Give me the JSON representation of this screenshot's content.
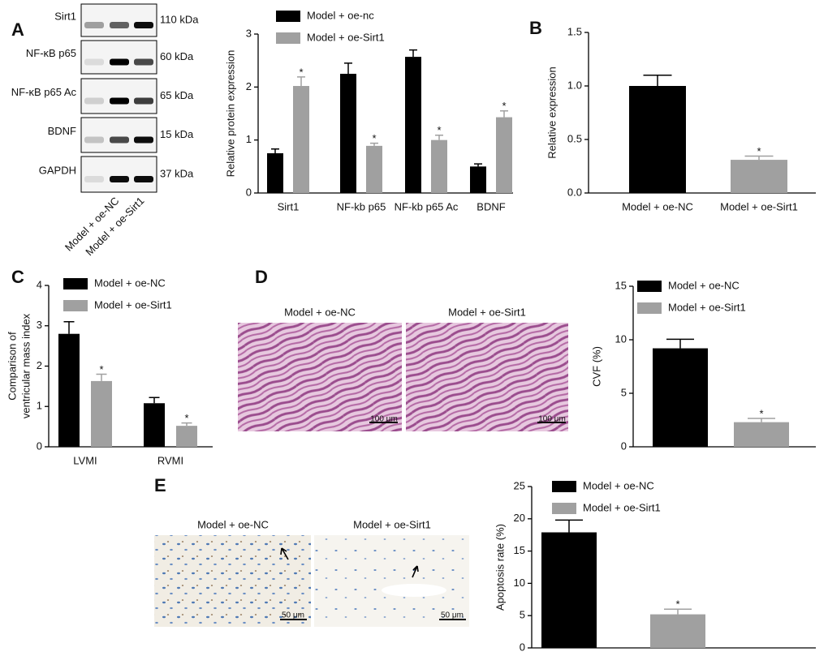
{
  "panel_labels": [
    "A",
    "B",
    "C",
    "D",
    "E"
  ],
  "blot": {
    "proteins": [
      "Sirt1",
      "NF-κB p65",
      "NF-κB p65 Ac",
      "BDNF",
      "GAPDH"
    ],
    "sizes": [
      "110 kDa",
      "60 kDa",
      "65 kDa",
      "15 kDa",
      "37 kDa"
    ],
    "lanes": [
      "Model + oe-NC",
      "Model + oe-Sirt1"
    ]
  },
  "micrographs_d": {
    "labels": [
      "Model + oe-NC",
      "Model + oe-Sirt1"
    ],
    "scale": "100 μm"
  },
  "micrographs_e": {
    "labels": [
      "Model + oe-NC",
      "Model + oe-Sirt1"
    ],
    "scale": "50 μm"
  },
  "chart_data": [
    {
      "type": "bar",
      "ylabel": [
        "Relative protein expression"
      ],
      "annotation": "*",
      "categories": [
        "Sirt1",
        "NF-kb p65",
        "NF-kb p65 Ac",
        "BDNF"
      ],
      "series": [
        {
          "name": "Model + oe-nc",
          "color": "#000000",
          "values": [
            0.75,
            2.25,
            2.57,
            0.5
          ],
          "errors": [
            0.08,
            0.2,
            0.13,
            0.05
          ]
        },
        {
          "name": "Model + oe-Sirt1",
          "color": "#a0a0a0",
          "values": [
            2.02,
            0.89,
            1.0,
            1.43
          ],
          "errors": [
            0.17,
            0.05,
            0.09,
            0.12
          ]
        }
      ],
      "ylim": [
        0,
        3
      ],
      "yticks": [
        0,
        1,
        2,
        3
      ]
    },
    {
      "type": "bar",
      "ylabel": [
        "Relative expression"
      ],
      "annotation": "*",
      "categories": [
        "Model + oe-NC",
        "Model + oe-Sirt1"
      ],
      "values": [
        1.0,
        0.31
      ],
      "errors": [
        0.1,
        0.035
      ],
      "colors": [
        "#000000",
        "#a0a0a0"
      ],
      "ylim": [
        0,
        1.5
      ],
      "yticks": [
        {
          "value": 0,
          "label": "0.0"
        },
        {
          "value": 0.5,
          "label": "0.5"
        },
        {
          "value": 1,
          "label": "1.0"
        },
        {
          "value": 1.5,
          "label": "1.5"
        }
      ]
    },
    {
      "type": "bar",
      "ylabel": [
        "Comparison of",
        "ventricular mass index"
      ],
      "annotation": "*",
      "categories": [
        "LVMI",
        "RVMI"
      ],
      "series": [
        {
          "name": "Model + oe-NC",
          "color": "#000000",
          "values": [
            2.8,
            1.08
          ],
          "errors": [
            0.3,
            0.14
          ]
        },
        {
          "name": "Model + oe-Sirt1",
          "color": "#a0a0a0",
          "values": [
            1.63,
            0.52
          ],
          "errors": [
            0.17,
            0.07
          ]
        }
      ],
      "ylim": [
        0,
        4
      ],
      "yticks": [
        0,
        1,
        2,
        3,
        4
      ]
    },
    {
      "type": "bar",
      "ylabel": [
        "CVF (%)"
      ],
      "annotation": "*",
      "categories": [
        null
      ],
      "series": [
        {
          "name": "Model + oe-NC",
          "color": "#000000",
          "values": [
            9.2
          ],
          "errors": [
            0.85
          ]
        },
        {
          "name": "Model + oe-Sirt1",
          "color": "#a0a0a0",
          "values": [
            2.3
          ],
          "errors": [
            0.35
          ]
        }
      ],
      "ylim": [
        0,
        15
      ],
      "yticks": [
        0,
        5,
        10,
        15
      ]
    },
    {
      "type": "bar",
      "ylabel": [
        "Apoptosis rate (%)"
      ],
      "annotation": "*",
      "categories": [
        null
      ],
      "series": [
        {
          "name": "Model + oe-NC",
          "color": "#000000",
          "values": [
            17.9
          ],
          "errors": [
            1.9
          ]
        },
        {
          "name": "Model + oe-Sirt1",
          "color": "#a0a0a0",
          "values": [
            5.2
          ],
          "errors": [
            0.8
          ]
        }
      ],
      "ylim": [
        0,
        25
      ],
      "yticks": [
        0,
        5,
        10,
        15,
        20,
        25
      ]
    }
  ]
}
